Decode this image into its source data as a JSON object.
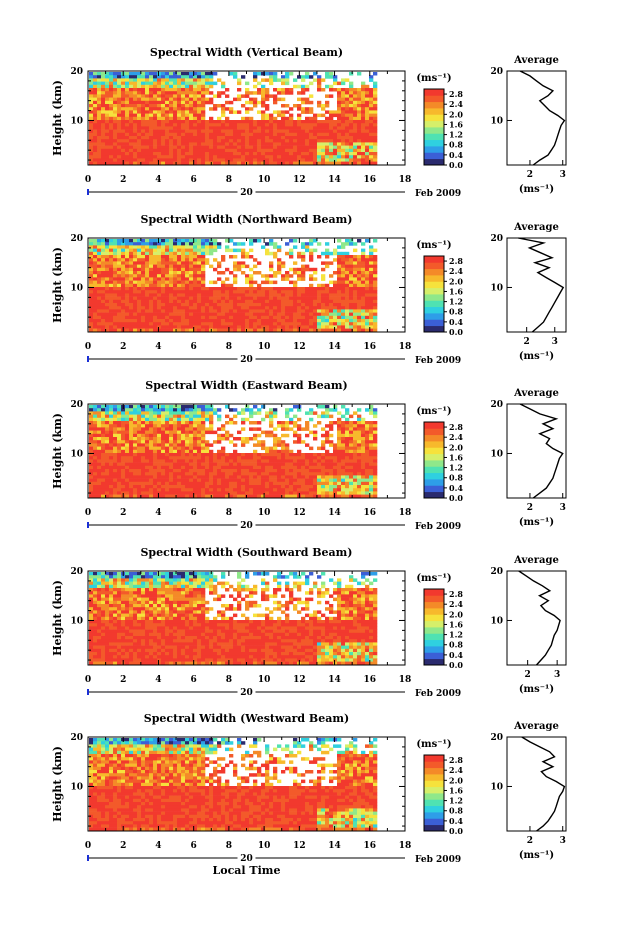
{
  "chart_data": [
    {
      "type": "heatmap",
      "title": "Spectral Width (Vertical Beam)",
      "ylabel": "Height (km)",
      "y_ticks": [
        "20",
        "10"
      ],
      "x_ticks": [
        "0",
        "2",
        "4",
        "6",
        "8",
        "10",
        "12",
        "14",
        "16",
        "18"
      ],
      "date_label": "20",
      "date_suffix": "Feb 2009",
      "xlim": [
        0,
        18
      ],
      "ylim": [
        1,
        20
      ],
      "data_extent_hours": 16.2,
      "colorbar": {
        "unit": "(ms⁻¹)",
        "ticks": [
          "2.8",
          "2.4",
          "2.0",
          "1.6",
          "1.2",
          "0.8",
          "0.4",
          "0.0"
        ],
        "range": [
          0,
          3.0
        ]
      },
      "profile": {
        "title": "Average",
        "xlabel": "(ms⁻¹)",
        "x_ticks": [
          "2",
          "3"
        ],
        "y_ticks": [
          "20",
          "10"
        ],
        "xlim": [
          1.3,
          3.1
        ],
        "ylim": [
          1,
          20
        ],
        "heights": [
          1,
          2,
          3,
          4,
          5,
          6,
          7,
          8,
          9,
          10,
          11,
          12,
          13,
          14,
          15,
          16,
          17,
          18,
          19,
          20
        ],
        "values": [
          2.1,
          2.3,
          2.55,
          2.65,
          2.75,
          2.8,
          2.85,
          2.9,
          2.95,
          3.05,
          2.85,
          2.6,
          2.45,
          2.3,
          2.55,
          2.7,
          2.4,
          2.2,
          2.0,
          1.7
        ]
      }
    },
    {
      "type": "heatmap",
      "title": "Spectral Width (Northward Beam)",
      "ylabel": "Height (km)",
      "y_ticks": [
        "20",
        "10"
      ],
      "x_ticks": [
        "0",
        "2",
        "4",
        "6",
        "8",
        "10",
        "12",
        "14",
        "16",
        "18"
      ],
      "date_label": "20",
      "date_suffix": "Feb 2009",
      "xlim": [
        0,
        18
      ],
      "ylim": [
        1,
        20
      ],
      "data_extent_hours": 16.2,
      "colorbar": {
        "unit": "(ms⁻¹)",
        "ticks": [
          "2.8",
          "2.4",
          "2.0",
          "1.6",
          "1.2",
          "0.8",
          "0.4",
          "0.0"
        ],
        "range": [
          0,
          3.0
        ]
      },
      "profile": {
        "title": "Average",
        "xlabel": "(ms⁻¹)",
        "x_ticks": [
          "2",
          "3"
        ],
        "y_ticks": [
          "20",
          "10"
        ],
        "xlim": [
          1.3,
          3.4
        ],
        "ylim": [
          1,
          20
        ],
        "heights": [
          1,
          2,
          3,
          4,
          5,
          6,
          7,
          8,
          9,
          10,
          11,
          12,
          13,
          14,
          15,
          16,
          17,
          18,
          19,
          20
        ],
        "values": [
          2.2,
          2.4,
          2.6,
          2.7,
          2.8,
          2.9,
          3.0,
          3.1,
          3.2,
          3.3,
          3.0,
          2.7,
          2.4,
          2.8,
          2.3,
          2.9,
          2.5,
          2.1,
          2.6,
          1.7
        ]
      }
    },
    {
      "type": "heatmap",
      "title": "Spectral Width (Eastward Beam)",
      "ylabel": "Height (km)",
      "y_ticks": [
        "20",
        "10"
      ],
      "x_ticks": [
        "0",
        "2",
        "4",
        "6",
        "8",
        "10",
        "12",
        "14",
        "16",
        "18"
      ],
      "date_label": "20",
      "date_suffix": "Feb 2009",
      "xlim": [
        0,
        18
      ],
      "ylim": [
        1,
        20
      ],
      "data_extent_hours": 16.2,
      "colorbar": {
        "unit": "(ms⁻¹)",
        "ticks": [
          "2.8",
          "2.4",
          "2.0",
          "1.6",
          "1.2",
          "0.8",
          "0.4",
          "0.0"
        ],
        "range": [
          0,
          3.0
        ]
      },
      "profile": {
        "title": "Average",
        "xlabel": "(ms⁻¹)",
        "x_ticks": [
          "2",
          "3"
        ],
        "y_ticks": [
          "20",
          "10"
        ],
        "xlim": [
          1.3,
          3.1
        ],
        "ylim": [
          1,
          20
        ],
        "heights": [
          1,
          2,
          3,
          4,
          5,
          6,
          7,
          8,
          9,
          10,
          11,
          12,
          13,
          14,
          15,
          16,
          17,
          18,
          19,
          20
        ],
        "values": [
          2.1,
          2.3,
          2.5,
          2.6,
          2.7,
          2.75,
          2.8,
          2.85,
          2.9,
          3.0,
          2.7,
          2.5,
          2.6,
          2.3,
          2.7,
          2.4,
          2.8,
          2.3,
          2.0,
          1.7
        ]
      }
    },
    {
      "type": "heatmap",
      "title": "Spectral Width (Southward Beam)",
      "ylabel": "Height (km)",
      "y_ticks": [
        "20",
        "10"
      ],
      "x_ticks": [
        "0",
        "2",
        "4",
        "6",
        "8",
        "10",
        "12",
        "14",
        "16",
        "18"
      ],
      "date_label": "20",
      "date_suffix": "Feb 2009",
      "xlim": [
        0,
        18
      ],
      "ylim": [
        1,
        20
      ],
      "data_extent_hours": 16.2,
      "colorbar": {
        "unit": "(ms⁻¹)",
        "ticks": [
          "2.8",
          "2.4",
          "2.0",
          "1.6",
          "1.2",
          "0.8",
          "0.4",
          "0.0"
        ],
        "range": [
          0,
          3.0
        ]
      },
      "profile": {
        "title": "Average",
        "xlabel": "(ms⁻¹)",
        "x_ticks": [
          "2",
          "3"
        ],
        "y_ticks": [
          "20",
          "10"
        ],
        "xlim": [
          1.3,
          3.3
        ],
        "ylim": [
          1,
          20
        ],
        "heights": [
          1,
          2,
          3,
          4,
          5,
          6,
          7,
          8,
          9,
          10,
          11,
          12,
          13,
          14,
          15,
          16,
          17,
          18,
          19,
          20
        ],
        "values": [
          2.3,
          2.45,
          2.6,
          2.7,
          2.8,
          2.85,
          2.9,
          3.0,
          3.05,
          3.1,
          2.9,
          2.6,
          2.45,
          2.7,
          2.4,
          2.75,
          2.5,
          2.2,
          1.95,
          1.7
        ]
      }
    },
    {
      "type": "heatmap",
      "title": "Spectral Width (Westward Beam)",
      "ylabel": "Height (km)",
      "y_ticks": [
        "20",
        "10"
      ],
      "x_ticks": [
        "0",
        "2",
        "4",
        "6",
        "8",
        "10",
        "12",
        "14",
        "16",
        "18"
      ],
      "date_label": "20",
      "date_suffix": "Feb 2009",
      "xlabel": "Local Time",
      "xlim": [
        0,
        18
      ],
      "ylim": [
        1,
        20
      ],
      "data_extent_hours": 16.2,
      "colorbar": {
        "unit": "(ms⁻¹)",
        "ticks": [
          "2.8",
          "2.4",
          "2.0",
          "1.6",
          "1.2",
          "0.8",
          "0.4",
          "0.0"
        ],
        "range": [
          0,
          3.0
        ]
      },
      "profile": {
        "title": "Average",
        "xlabel": "(ms⁻¹)",
        "x_ticks": [
          "2",
          "3"
        ],
        "y_ticks": [
          "20",
          "10"
        ],
        "xlim": [
          1.3,
          3.1
        ],
        "ylim": [
          1,
          20
        ],
        "heights": [
          1,
          2,
          3,
          4,
          5,
          6,
          7,
          8,
          9,
          10,
          11,
          12,
          13,
          14,
          15,
          16,
          17,
          18,
          19,
          20
        ],
        "values": [
          2.2,
          2.4,
          2.55,
          2.65,
          2.75,
          2.8,
          2.85,
          2.9,
          3.0,
          3.05,
          2.8,
          2.5,
          2.35,
          2.7,
          2.4,
          2.75,
          2.6,
          2.3,
          2.0,
          1.75
        ]
      }
    }
  ],
  "colors": {
    "scale": [
      "#2a2a6e",
      "#3b5fd6",
      "#2e9ee8",
      "#2fd0e0",
      "#4fe2b2",
      "#8fe88a",
      "#d6ef6a",
      "#f6e23c",
      "#f7b92c",
      "#f48a28",
      "#f35a2a",
      "#f2392e"
    ],
    "date_marker": "#1a2fd6"
  }
}
